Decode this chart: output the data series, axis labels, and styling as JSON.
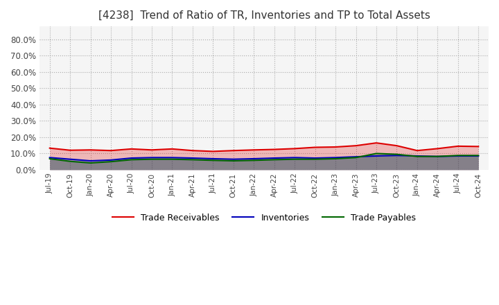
{
  "title": "[4238]  Trend of Ratio of TR, Inventories and TP to Total Assets",
  "title_fontsize": 11,
  "ylim": [
    0.0,
    0.88
  ],
  "yticks": [
    0.0,
    0.1,
    0.2,
    0.3,
    0.4,
    0.5,
    0.6,
    0.7,
    0.8
  ],
  "ytick_labels": [
    "0.0%",
    "10.0%",
    "20.0%",
    "30.0%",
    "40.0%",
    "50.0%",
    "60.0%",
    "70.0%",
    "80.0%"
  ],
  "x_labels": [
    "Jul-19",
    "Oct-19",
    "Jan-20",
    "Apr-20",
    "Jul-20",
    "Oct-20",
    "Jan-21",
    "Apr-21",
    "Jul-21",
    "Oct-21",
    "Jan-22",
    "Apr-22",
    "Jul-22",
    "Oct-22",
    "Jan-23",
    "Apr-23",
    "Jul-23",
    "Oct-23",
    "Jan-24",
    "Apr-24",
    "Jul-24",
    "Oct-24"
  ],
  "trade_receivables": [
    0.133,
    0.12,
    0.122,
    0.118,
    0.128,
    0.122,
    0.128,
    0.118,
    0.113,
    0.118,
    0.122,
    0.125,
    0.13,
    0.138,
    0.14,
    0.148,
    0.165,
    0.148,
    0.118,
    0.13,
    0.145,
    0.143
  ],
  "inventories": [
    0.075,
    0.065,
    0.055,
    0.06,
    0.072,
    0.075,
    0.075,
    0.072,
    0.068,
    0.065,
    0.068,
    0.072,
    0.075,
    0.072,
    0.075,
    0.08,
    0.085,
    0.088,
    0.085,
    0.082,
    0.085,
    0.085
  ],
  "trade_payables": [
    0.068,
    0.052,
    0.042,
    0.05,
    0.062,
    0.065,
    0.065,
    0.062,
    0.058,
    0.055,
    0.058,
    0.062,
    0.065,
    0.065,
    0.068,
    0.075,
    0.1,
    0.095,
    0.082,
    0.082,
    0.088,
    0.088
  ],
  "tr_color": "#dd0000",
  "inv_color": "#0000bb",
  "tp_color": "#006600",
  "tr_fill": "#ffcccc",
  "inv_fill": "#ccccff",
  "tp_fill": "#ccffcc",
  "line_width": 1.5,
  "bg_color": "#ffffff",
  "plot_bg_color": "#f5f5f5",
  "grid_color": "#aaaaaa",
  "legend_labels": [
    "Trade Receivables",
    "Inventories",
    "Trade Payables"
  ],
  "legend_ncol": 3
}
